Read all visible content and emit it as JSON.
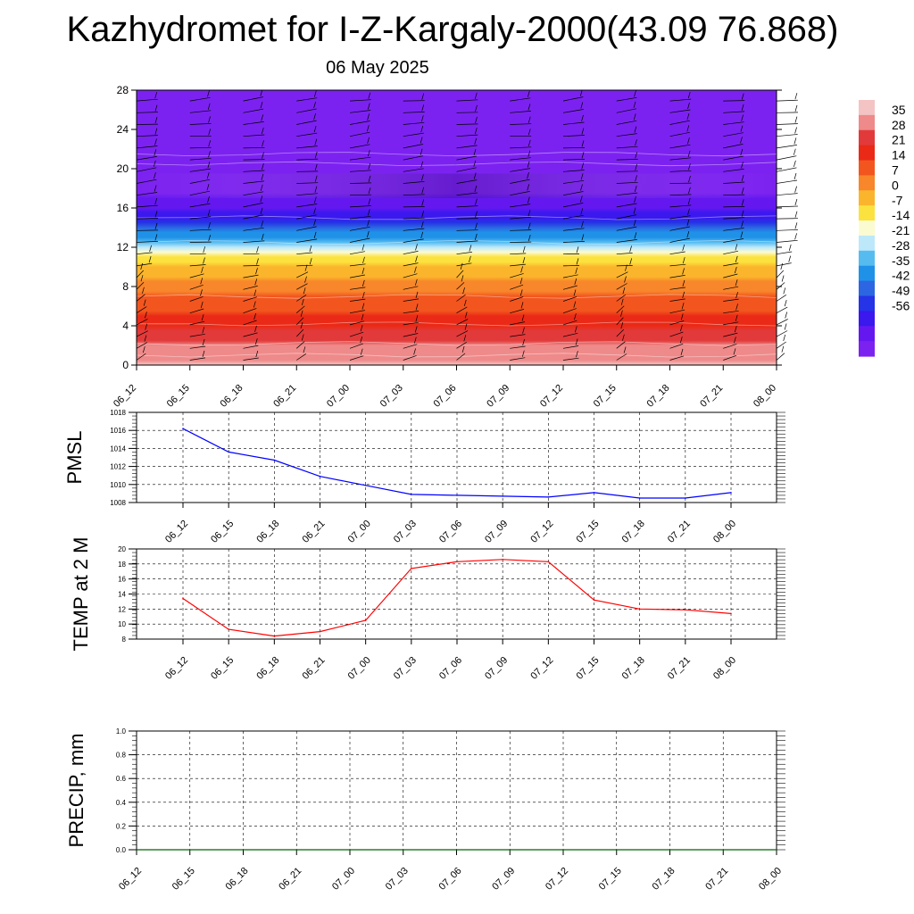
{
  "title": "Kazhydromet for I-Z-Kargaly-2000(43.09 76.868)",
  "date": "06 May 2025",
  "time_labels": [
    "06_12",
    "06_15",
    "06_18",
    "06_21",
    "07_00",
    "07_03",
    "07_06",
    "07_09",
    "07_12",
    "07_15",
    "07_18",
    "07_21",
    "08_00"
  ],
  "colorbar": {
    "labels": [
      "35",
      "28",
      "21",
      "14",
      "7",
      "0",
      "-7",
      "-14",
      "-21",
      "-28",
      "-35",
      "-42",
      "-49",
      "-56"
    ],
    "colors": [
      "#f4c4c4",
      "#ef8a8a",
      "#e23a3a",
      "#ea2a16",
      "#f2561e",
      "#f8862a",
      "#fbb52c",
      "#fce23e",
      "#fbfbd2",
      "#bde8fa",
      "#56bcf0",
      "#1f92e8",
      "#2c66e2",
      "#2434e6",
      "#3a18ee",
      "#6418ef",
      "#7c22f0"
    ]
  },
  "chart_data": [
    {
      "type": "heatmap",
      "title": "",
      "ylabel": "",
      "y_ticks": [
        "0",
        "4",
        "8",
        "12",
        "16",
        "20",
        "24",
        "28"
      ],
      "ylim": [
        0,
        28
      ],
      "x_categories": [
        "06_12",
        "06_15",
        "06_18",
        "06_21",
        "07_00",
        "07_03",
        "07_06",
        "07_09",
        "07_12",
        "07_15",
        "07_18",
        "07_21",
        "08_00"
      ],
      "z_profile": {
        "level": [
          0,
          2,
          5,
          8,
          10,
          11,
          12,
          13,
          14,
          15,
          16,
          17,
          18,
          19,
          20,
          21,
          22,
          23,
          28
        ],
        "value": [
          30,
          25,
          15,
          5,
          0,
          -5,
          -14,
          -24,
          -32,
          -40,
          -46,
          -50,
          -52,
          -54,
          -56,
          -58,
          -60,
          -62,
          -62
        ]
      },
      "wind_barbs": true,
      "colorbar_range": [
        -56,
        35
      ]
    },
    {
      "type": "line",
      "ylabel": "PMSL",
      "ylim": [
        1008,
        1018
      ],
      "y_ticks": [
        "1008",
        "1010",
        "1012",
        "1014",
        "1016",
        "1018"
      ],
      "x": [
        "06_12",
        "06_15",
        "06_18",
        "06_21",
        "07_00",
        "07_03",
        "07_06",
        "07_09",
        "07_12",
        "07_15",
        "07_18",
        "07_21",
        "08_00"
      ],
      "series": [
        {
          "values": [
            1016.2,
            1013.6,
            1012.7,
            1010.9,
            1009.9,
            1008.9,
            1008.8,
            1008.7,
            1008.6,
            1009.1,
            1008.5,
            1008.5,
            1009.1
          ],
          "color": "#0000ff"
        }
      ]
    },
    {
      "type": "line",
      "ylabel": "TEMP at 2 M",
      "ylim": [
        8,
        20
      ],
      "y_ticks": [
        "8",
        "10",
        "12",
        "14",
        "16",
        "18",
        "20"
      ],
      "x": [
        "06_12",
        "06_15",
        "06_18",
        "06_21",
        "07_00",
        "07_03",
        "07_06",
        "07_09",
        "07_12",
        "07_15",
        "07_18",
        "07_21",
        "08_00"
      ],
      "series": [
        {
          "values": [
            13.4,
            9.3,
            8.4,
            9.0,
            10.5,
            17.4,
            18.3,
            18.6,
            18.3,
            13.2,
            12.0,
            11.9,
            11.4
          ],
          "color": "#ff0000"
        }
      ]
    },
    {
      "type": "bar",
      "ylabel": "PRECIP, mm",
      "ylim": [
        0,
        1.0
      ],
      "y_ticks": [
        "0.0",
        "0.2",
        "0.4",
        "0.6",
        "0.8",
        "1.0"
      ],
      "x": [
        "06_12",
        "06_15",
        "06_18",
        "06_21",
        "07_00",
        "07_03",
        "07_06",
        "07_09",
        "07_12",
        "07_15",
        "07_18",
        "07_21",
        "08_00"
      ],
      "series": [
        {
          "values": [
            0,
            0,
            0,
            0,
            0,
            0,
            0,
            0,
            0,
            0,
            0,
            0,
            0
          ],
          "color": "#006400"
        }
      ]
    }
  ]
}
